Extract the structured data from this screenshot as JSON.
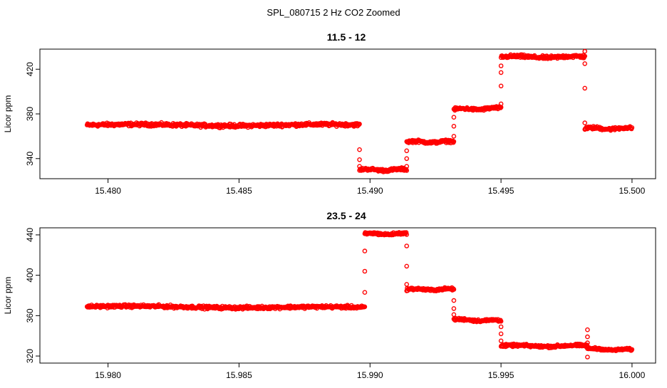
{
  "figure": {
    "title": "SPL_080715  2 Hz CO2 Zoomed",
    "point_color": "#ff0000"
  },
  "chart_data": [
    {
      "type": "scatter",
      "title": "11.5 - 12",
      "xlabel": "",
      "ylabel": "Licor ppm",
      "xlim": [
        15.4774,
        15.5009
      ],
      "ylim": [
        322,
        438
      ],
      "xticks": [
        "15.480",
        "15.485",
        "15.490",
        "15.495",
        "15.500"
      ],
      "yticks": [
        "340",
        "380",
        "420"
      ],
      "marker": "open-circle",
      "segments": [
        {
          "x0": 15.4792,
          "x1": 15.4896,
          "y0": 370,
          "y1": 370,
          "jitter": 1.4
        },
        {
          "x0": 15.4896,
          "x1": 15.4914,
          "y0": 330,
          "y1": 330,
          "jitter": 1.2
        },
        {
          "x0": 15.4914,
          "x1": 15.4932,
          "y0": 355,
          "y1": 355,
          "jitter": 1.2
        },
        {
          "x0": 15.4932,
          "x1": 15.495,
          "y0": 384,
          "y1": 385,
          "jitter": 1.2
        },
        {
          "x0": 15.495,
          "x1": 15.4982,
          "y0": 431,
          "y1": 431,
          "jitter": 1.4
        },
        {
          "x0": 15.4982,
          "x1": 15.5,
          "y0": 367,
          "y1": 367,
          "jitter": 1.3
        }
      ],
      "transitions": [
        {
          "x": 15.4896,
          "values": [
            348,
            339,
            333
          ]
        },
        {
          "x": 15.4914,
          "values": [
            333,
            340,
            347
          ]
        },
        {
          "x": 15.4932,
          "values": [
            360,
            369,
            377
          ]
        },
        {
          "x": 15.495,
          "values": [
            389,
            405,
            417,
            423
          ]
        },
        {
          "x": 15.4982,
          "values": [
            436,
            425,
            403,
            372
          ]
        }
      ]
    },
    {
      "type": "scatter",
      "title": "23.5 - 24",
      "xlabel": "",
      "ylabel": "Licor ppm",
      "xlim": [
        15.9774,
        16.0009
      ],
      "ylim": [
        313,
        447
      ],
      "xticks": [
        "15.980",
        "15.985",
        "15.990",
        "15.995",
        "16.000"
      ],
      "yticks": [
        "320",
        "360",
        "400",
        "440"
      ],
      "marker": "open-circle",
      "segments": [
        {
          "x0": 15.9792,
          "x1": 15.9898,
          "y0": 369,
          "y1": 368,
          "jitter": 1.4
        },
        {
          "x0": 15.9898,
          "x1": 15.9914,
          "y0": 441,
          "y1": 441,
          "jitter": 1.2
        },
        {
          "x0": 15.9914,
          "x1": 15.9932,
          "y0": 386,
          "y1": 386,
          "jitter": 1.2
        },
        {
          "x0": 15.9932,
          "x1": 15.995,
          "y0": 356,
          "y1": 355,
          "jitter": 1.2
        },
        {
          "x0": 15.995,
          "x1": 15.9983,
          "y0": 330,
          "y1": 330,
          "jitter": 1.2
        },
        {
          "x0": 15.9983,
          "x1": 16.0,
          "y0": 327,
          "y1": 326,
          "jitter": 1.0
        }
      ],
      "transitions": [
        {
          "x": 15.9898,
          "values": [
            383,
            404,
            424
          ]
        },
        {
          "x": 15.9914,
          "values": [
            429,
            409,
            391
          ]
        },
        {
          "x": 15.9932,
          "values": [
            375,
            367,
            361
          ]
        },
        {
          "x": 15.995,
          "values": [
            349,
            342,
            335
          ]
        },
        {
          "x": 15.9983,
          "values": [
            346,
            339,
            333,
            319
          ]
        }
      ]
    }
  ]
}
